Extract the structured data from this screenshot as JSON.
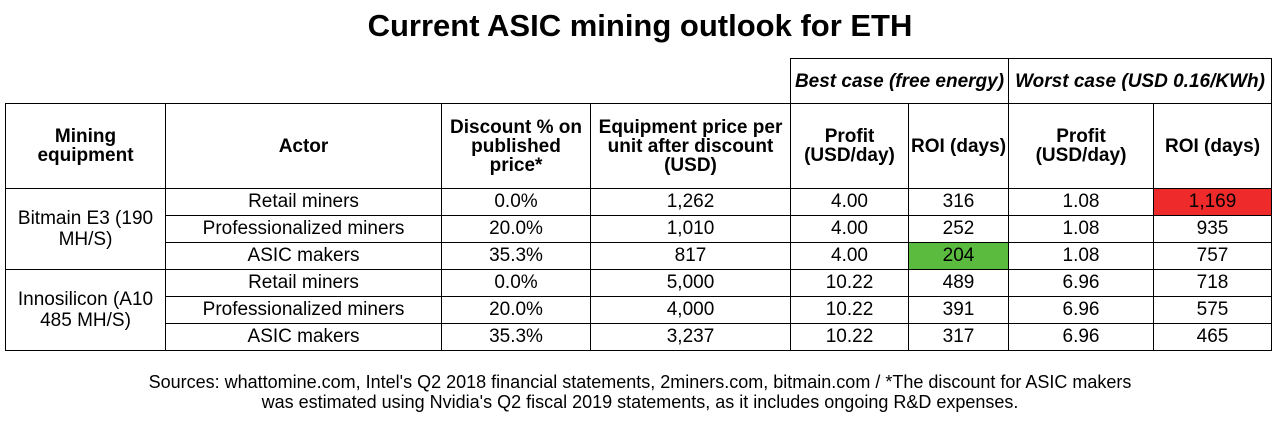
{
  "title": "Current ASIC mining outlook for ETH",
  "chart_data": {
    "type": "table",
    "groups": {
      "best": "Best case (free energy)",
      "worst": "Worst case (USD 0.16/KWh)"
    },
    "columns": [
      "Mining equipment",
      "Actor",
      "Discount % on published price*",
      "Equipment price per unit after discount (USD)",
      "Profit (USD/day)",
      "ROI (days)",
      "Profit (USD/day)",
      "ROI (days)"
    ],
    "equipment": [
      "Bitmain E3 (190 MH/S)",
      "Innosilicon (A10 485 MH/S)"
    ],
    "rows": [
      [
        "Retail miners",
        "0.0%",
        "1,262",
        "4.00",
        "316",
        "1.08",
        "1,169"
      ],
      [
        "Professionalized miners",
        "20.0%",
        "1,010",
        "4.00",
        "252",
        "1.08",
        "935"
      ],
      [
        "ASIC makers",
        "35.3%",
        "817",
        "4.00",
        "204",
        "1.08",
        "757"
      ],
      [
        "Retail miners",
        "0.0%",
        "5,000",
        "10.22",
        "489",
        "6.96",
        "718"
      ],
      [
        "Professionalized miners",
        "20.0%",
        "4,000",
        "10.22",
        "391",
        "6.96",
        "575"
      ],
      [
        "ASIC makers",
        "35.3%",
        "3,237",
        "10.22",
        "317",
        "6.96",
        "465"
      ]
    ],
    "highlights": {
      "worst_roi_max": "#ee2a2a",
      "best_roi_min": "#5bbb3f"
    }
  },
  "footer": {
    "line1": "Sources: whattomine.com, Intel's Q2 2018 financial statements, 2miners.com, bitmain.com / *The discount for ASIC makers",
    "line2": "was estimated using Nvidia's Q2 fiscal 2019 statements, as it includes ongoing R&D expenses."
  }
}
